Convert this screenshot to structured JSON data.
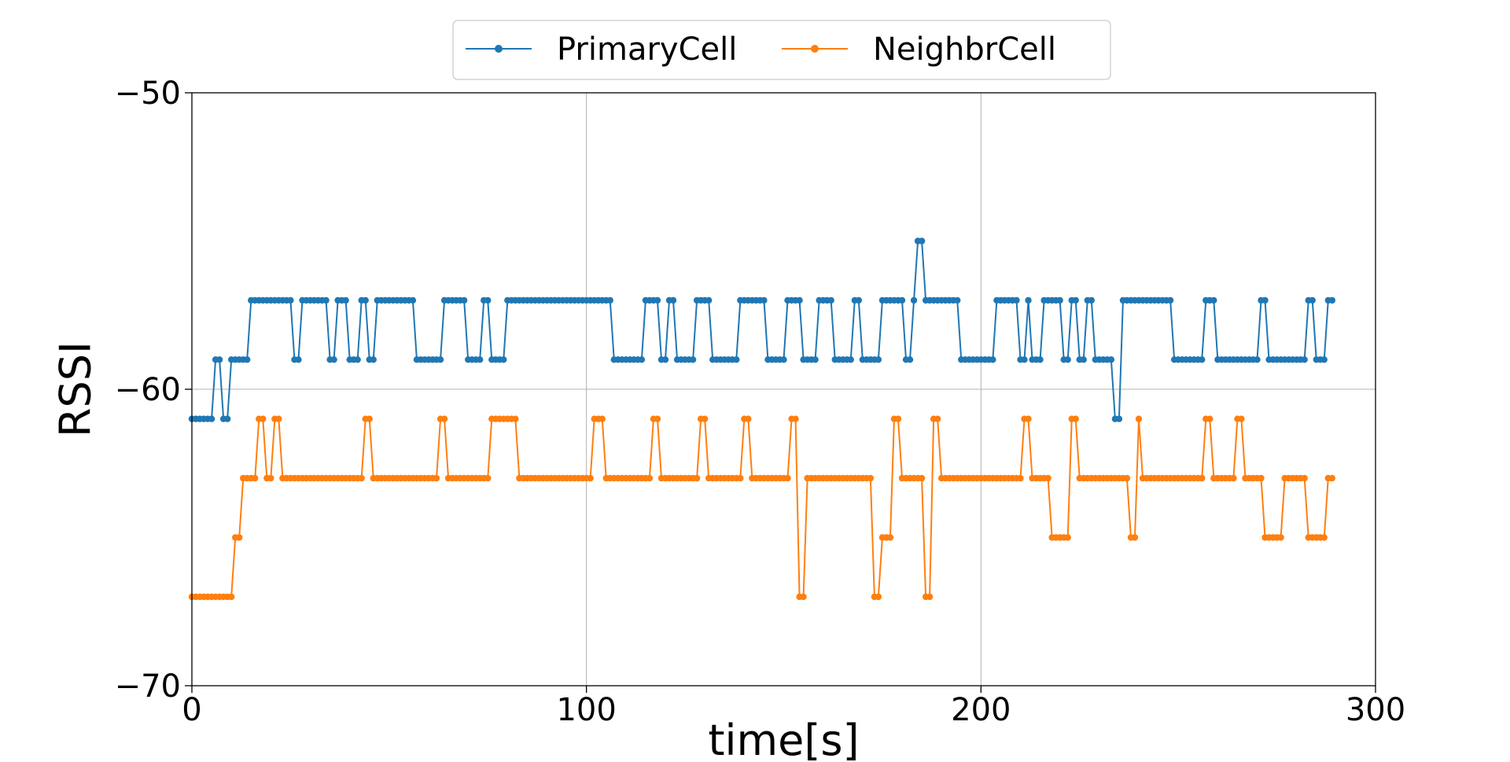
{
  "chart_data": {
    "type": "line",
    "title": "",
    "xlabel": "time[s]",
    "ylabel": "RSSI",
    "xlim": [
      0,
      300
    ],
    "ylim": [
      -70,
      -50
    ],
    "xticks": [
      0,
      100,
      200,
      300
    ],
    "yticks": [
      -70,
      -60,
      -50
    ],
    "xtick_labels": [
      "0",
      "100",
      "200",
      "300"
    ],
    "ytick_labels": [
      "−70",
      "−60",
      "−50"
    ],
    "grid": true,
    "legend": "top-center",
    "series": [
      {
        "name": "PrimaryCell",
        "color": "#1f77b4",
        "steps": [
          [
            0,
            -61
          ],
          [
            6,
            -59
          ],
          [
            8,
            -61
          ],
          [
            10,
            -59
          ],
          [
            15,
            -57
          ],
          [
            26,
            -59
          ],
          [
            28,
            -57
          ],
          [
            35,
            -59
          ],
          [
            37,
            -57
          ],
          [
            40,
            -59
          ],
          [
            43,
            -57
          ],
          [
            45,
            -59
          ],
          [
            47,
            -57
          ],
          [
            57,
            -59
          ],
          [
            64,
            -57
          ],
          [
            66,
            -57
          ],
          [
            70,
            -59
          ],
          [
            74,
            -57
          ],
          [
            76,
            -59
          ],
          [
            80,
            -57
          ],
          [
            107,
            -59
          ],
          [
            115,
            -57
          ],
          [
            119,
            -59
          ],
          [
            121,
            -57
          ],
          [
            123,
            -59
          ],
          [
            128,
            -57
          ],
          [
            132,
            -59
          ],
          [
            139,
            -57
          ],
          [
            146,
            -59
          ],
          [
            151,
            -57
          ],
          [
            155,
            -59
          ],
          [
            159,
            -57
          ],
          [
            163,
            -59
          ],
          [
            168,
            -57
          ],
          [
            170,
            -59
          ],
          [
            175,
            -57
          ],
          [
            181,
            -59
          ],
          [
            183,
            -57
          ],
          [
            184,
            -55
          ],
          [
            186,
            -57
          ],
          [
            195,
            -59
          ],
          [
            204,
            -57
          ],
          [
            210,
            -59
          ],
          [
            212,
            -57
          ],
          [
            213,
            -59
          ],
          [
            216,
            -57
          ],
          [
            221,
            -59
          ],
          [
            223,
            -57
          ],
          [
            225,
            -59
          ],
          [
            227,
            -57
          ],
          [
            229,
            -59
          ],
          [
            234,
            -61
          ],
          [
            236,
            -57
          ],
          [
            249,
            -59
          ],
          [
            257,
            -57
          ],
          [
            260,
            -59
          ],
          [
            266,
            -59
          ],
          [
            271,
            -57
          ],
          [
            273,
            -59
          ],
          [
            283,
            -57
          ],
          [
            285,
            -59
          ],
          [
            288,
            -57
          ]
        ],
        "end": 289
      },
      {
        "name": "NeighbrCell",
        "color": "#ff7f0e",
        "steps": [
          [
            0,
            -67
          ],
          [
            11,
            -65
          ],
          [
            13,
            -63
          ],
          [
            17,
            -61
          ],
          [
            19,
            -63
          ],
          [
            21,
            -61
          ],
          [
            23,
            -63
          ],
          [
            44,
            -61
          ],
          [
            46,
            -63
          ],
          [
            63,
            -61
          ],
          [
            65,
            -63
          ],
          [
            76,
            -61
          ],
          [
            83,
            -63
          ],
          [
            102,
            -61
          ],
          [
            105,
            -63
          ],
          [
            117,
            -61
          ],
          [
            119,
            -63
          ],
          [
            129,
            -61
          ],
          [
            131,
            -63
          ],
          [
            140,
            -61
          ],
          [
            142,
            -63
          ],
          [
            152,
            -61
          ],
          [
            154,
            -67
          ],
          [
            156,
            -63
          ],
          [
            173,
            -67
          ],
          [
            175,
            -65
          ],
          [
            178,
            -61
          ],
          [
            180,
            -63
          ],
          [
            186,
            -67
          ],
          [
            188,
            -61
          ],
          [
            190,
            -63
          ],
          [
            211,
            -61
          ],
          [
            213,
            -63
          ],
          [
            218,
            -65
          ],
          [
            223,
            -61
          ],
          [
            225,
            -63
          ],
          [
            238,
            -65
          ],
          [
            240,
            -61
          ],
          [
            241,
            -63
          ],
          [
            257,
            -61
          ],
          [
            259,
            -63
          ],
          [
            265,
            -61
          ],
          [
            267,
            -63
          ],
          [
            272,
            -65
          ],
          [
            277,
            -63
          ],
          [
            283,
            -65
          ],
          [
            288,
            -63
          ]
        ],
        "end": 289
      }
    ]
  }
}
